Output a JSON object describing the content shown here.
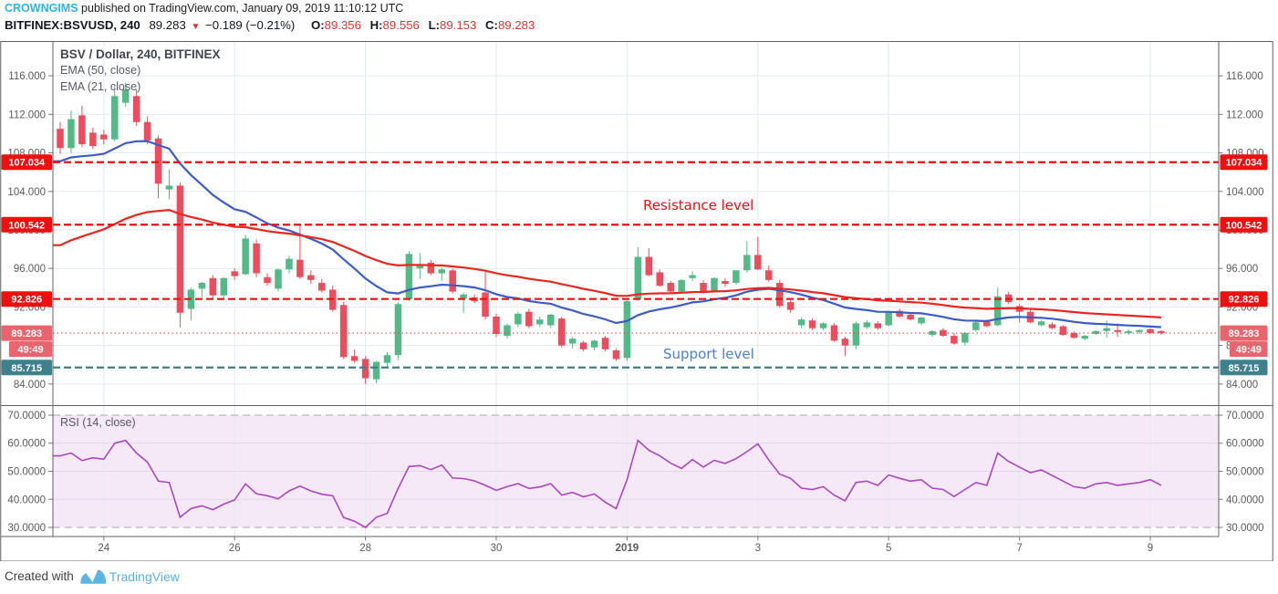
{
  "header": {
    "author": "CROWNGIMS",
    "published": " published on TradingView.com, January 09, 2019 11:10:12 UTC",
    "symbol": "BITFINEX:BSVUSD, 240",
    "last_price": "89.283",
    "direction_icon": "down-triangle",
    "change": "−0.189 (−0.21%)",
    "ohlc": [
      {
        "label": "O:",
        "value": "89.356"
      },
      {
        "label": "H:",
        "value": "89.556"
      },
      {
        "label": "L:",
        "value": "89.153"
      },
      {
        "label": "C:",
        "value": "89.283"
      }
    ]
  },
  "legend": {
    "title": "BSV / Dollar, 240, BITFINEX",
    "indicators": [
      "EMA (50, close)",
      "EMA (21, close)"
    ],
    "rsi": "RSI (14, close)"
  },
  "annotations": {
    "resistance": "Resistance level",
    "support": "Support level"
  },
  "footer": {
    "created_with": "Created with",
    "brand": "TradingView",
    "logo_icon": "tradingview-cloud-logo",
    "brand_color": "#55b1e3"
  },
  "chart_data": {
    "type": "candlestick",
    "title": "BSV / Dollar, 240, BITFINEX",
    "interval_minutes": 240,
    "price_axis": {
      "range": [
        81.76,
        119.61
      ],
      "ticks": [
        84,
        88,
        92,
        96,
        100,
        104,
        108,
        112,
        116
      ],
      "decimals": 3
    },
    "rsi_axis": {
      "range": [
        26.75,
        73.25
      ],
      "ticks": [
        30,
        40,
        50,
        60,
        70
      ],
      "decimals": 4,
      "band": [
        30,
        70
      ]
    },
    "x_ticks": [
      {
        "label": "24",
        "index": 4
      },
      {
        "label": "26",
        "index": 16
      },
      {
        "label": "28",
        "index": 28
      },
      {
        "label": "30",
        "index": 40
      },
      {
        "label": "2019",
        "index": 52,
        "bold": true
      },
      {
        "label": "3",
        "index": 64
      },
      {
        "label": "5",
        "index": 76
      },
      {
        "label": "7",
        "index": 88
      },
      {
        "label": "9",
        "index": 100
      }
    ],
    "levels": [
      {
        "price": 107.034,
        "label": "107.034",
        "color": "#f00f0f",
        "role": "resistance"
      },
      {
        "price": 100.542,
        "label": "100.542",
        "color": "#f00f0f",
        "role": "resistance"
      },
      {
        "price": 92.826,
        "label": "92.826",
        "color": "#f00f0f",
        "role": "resistance"
      },
      {
        "price": 85.715,
        "label": "85.715",
        "color": "#3f808d",
        "role": "support"
      }
    ],
    "last": {
      "price": 89.283,
      "label": "89.283",
      "countdown": "49:49",
      "pill_color": "#e9646c",
      "line_color": "#e04a4a"
    },
    "ema": [
      {
        "label": "EMA (50, close)",
        "period": 50,
        "seed": 98.0,
        "color": "#e8261f"
      },
      {
        "label": "EMA (21, close)",
        "period": 21,
        "seed": 107.0,
        "color": "#3c5cc5"
      }
    ],
    "colors": {
      "up": "#53b987",
      "down": "#eb4d5c",
      "grid": "#e2eaf2",
      "rsi_grid": "#e0d5eb",
      "axis_text": "#5a5a5a",
      "frame": "#606060",
      "rsi_line": "#ab47bc",
      "rsi_band": "#f5e9f8",
      "rsi_dash": "#b9b9b9"
    },
    "candles": [
      [
        110.5,
        111.2,
        107.9,
        108.5
      ],
      [
        108.5,
        112.4,
        108.0,
        111.5
      ],
      [
        111.9,
        112.9,
        108.6,
        108.9
      ],
      [
        110.1,
        110.6,
        108.4,
        108.7
      ],
      [
        109.9,
        110.4,
        108.9,
        109.4
      ],
      [
        109.4,
        115.0,
        109.2,
        113.9
      ],
      [
        113.2,
        115.3,
        112.8,
        114.6
      ],
      [
        113.9,
        114.6,
        110.8,
        111.2
      ],
      [
        111.2,
        111.8,
        108.9,
        109.3
      ],
      [
        109.5,
        109.8,
        103.3,
        104.8
      ],
      [
        104.2,
        106.3,
        103.2,
        104.6
      ],
      [
        104.6,
        104.9,
        89.9,
        91.4
      ],
      [
        91.8,
        94.0,
        90.6,
        93.8
      ],
      [
        93.9,
        94.6,
        93.0,
        94.5
      ],
      [
        95.0,
        95.3,
        92.9,
        93.2
      ],
      [
        93.2,
        95.1,
        92.8,
        95.0
      ],
      [
        95.7,
        96.0,
        94.8,
        95.2
      ],
      [
        95.4,
        99.5,
        95.3,
        99.1
      ],
      [
        98.6,
        99.0,
        95.1,
        95.5
      ],
      [
        95.1,
        95.5,
        94.2,
        94.5
      ],
      [
        93.9,
        96.0,
        93.6,
        95.9
      ],
      [
        95.9,
        97.3,
        95.5,
        97.0
      ],
      [
        96.9,
        100.5,
        94.9,
        95.1
      ],
      [
        95.3,
        95.8,
        94.4,
        94.8
      ],
      [
        94.5,
        94.9,
        93.5,
        93.7
      ],
      [
        93.8,
        94.2,
        91.5,
        91.7
      ],
      [
        92.2,
        92.5,
        86.6,
        86.8
      ],
      [
        86.9,
        87.6,
        86.2,
        86.4
      ],
      [
        86.6,
        86.9,
        84.0,
        84.6
      ],
      [
        84.5,
        86.4,
        84.1,
        86.3
      ],
      [
        86.2,
        87.3,
        85.6,
        87.0
      ],
      [
        87.0,
        92.5,
        86.5,
        92.3
      ],
      [
        92.8,
        97.8,
        92.6,
        97.5
      ],
      [
        96.0,
        97.6,
        94.9,
        96.4
      ],
      [
        96.6,
        96.9,
        95.3,
        95.5
      ],
      [
        95.5,
        96.1,
        94.7,
        95.9
      ],
      [
        95.8,
        96.0,
        93.4,
        93.6
      ],
      [
        92.9,
        93.5,
        91.4,
        93.3
      ],
      [
        93.0,
        93.3,
        92.4,
        92.6
      ],
      [
        93.5,
        95.8,
        90.7,
        91.0
      ],
      [
        91.0,
        91.3,
        88.9,
        89.2
      ],
      [
        89.0,
        90.3,
        88.7,
        90.1
      ],
      [
        90.2,
        91.5,
        89.9,
        91.3
      ],
      [
        91.5,
        91.8,
        89.8,
        90.0
      ],
      [
        90.2,
        91.0,
        89.9,
        90.7
      ],
      [
        90.1,
        91.3,
        89.8,
        91.2
      ],
      [
        90.8,
        91.0,
        87.8,
        88.0
      ],
      [
        88.2,
        88.9,
        87.7,
        88.7
      ],
      [
        88.3,
        88.5,
        87.4,
        87.6
      ],
      [
        87.8,
        88.6,
        87.5,
        88.5
      ],
      [
        88.8,
        89.0,
        87.4,
        87.6
      ],
      [
        87.5,
        87.7,
        86.4,
        86.6
      ],
      [
        86.7,
        92.7,
        86.4,
        92.6
      ],
      [
        92.8,
        98.2,
        92.6,
        97.2
      ],
      [
        97.2,
        98.1,
        95.2,
        95.3
      ],
      [
        95.6,
        95.9,
        94.1,
        94.2
      ],
      [
        94.5,
        94.7,
        93.4,
        93.6
      ],
      [
        93.6,
        94.9,
        93.4,
        94.8
      ],
      [
        95.0,
        95.7,
        94.7,
        95.3
      ],
      [
        94.5,
        94.8,
        93.4,
        93.6
      ],
      [
        93.7,
        95.1,
        93.5,
        95.0
      ],
      [
        94.7,
        95.0,
        94.1,
        94.4
      ],
      [
        94.5,
        95.8,
        94.3,
        95.8
      ],
      [
        95.8,
        98.8,
        95.6,
        97.4
      ],
      [
        97.4,
        99.3,
        95.8,
        95.9
      ],
      [
        95.8,
        96.3,
        94.6,
        94.8
      ],
      [
        94.5,
        94.8,
        91.9,
        92.1
      ],
      [
        92.5,
        92.7,
        91.4,
        91.7
      ],
      [
        90.1,
        90.9,
        89.8,
        90.7
      ],
      [
        90.6,
        90.8,
        89.6,
        89.8
      ],
      [
        89.8,
        90.4,
        89.6,
        90.3
      ],
      [
        90.1,
        90.3,
        88.4,
        88.5
      ],
      [
        88.7,
        88.9,
        86.9,
        88.0
      ],
      [
        88.0,
        90.5,
        87.6,
        90.3
      ],
      [
        89.9,
        90.6,
        89.7,
        90.4
      ],
      [
        90.3,
        90.5,
        89.6,
        89.8
      ],
      [
        90.1,
        91.5,
        90.0,
        91.4
      ],
      [
        91.6,
        91.8,
        90.9,
        91.0
      ],
      [
        91.2,
        91.4,
        90.6,
        90.7
      ],
      [
        90.3,
        91.0,
        90.1,
        90.9
      ],
      [
        89.1,
        89.6,
        88.9,
        89.5
      ],
      [
        89.6,
        89.8,
        88.9,
        89.0
      ],
      [
        89.0,
        89.3,
        88.1,
        88.2
      ],
      [
        88.3,
        89.4,
        88.0,
        89.3
      ],
      [
        89.6,
        90.6,
        89.4,
        90.4
      ],
      [
        90.5,
        90.7,
        89.9,
        90.0
      ],
      [
        90.1,
        94.0,
        90.0,
        93.1
      ],
      [
        93.3,
        93.6,
        92.3,
        92.5
      ],
      [
        92.1,
        92.3,
        90.4,
        91.5
      ],
      [
        91.5,
        91.7,
        90.3,
        90.4
      ],
      [
        90.1,
        90.6,
        90.0,
        90.5
      ],
      [
        90.2,
        90.4,
        89.7,
        89.8
      ],
      [
        90.0,
        90.1,
        89.0,
        89.1
      ],
      [
        89.3,
        89.5,
        88.7,
        88.8
      ],
      [
        88.7,
        89.1,
        88.5,
        89.0
      ],
      [
        89.2,
        89.6,
        89.1,
        89.5
      ],
      [
        89.5,
        90.6,
        88.8,
        89.8
      ],
      [
        89.6,
        90.3,
        88.9,
        89.4
      ],
      [
        89.3,
        89.7,
        89.1,
        89.5
      ],
      [
        89.4,
        89.7,
        89.2,
        89.6
      ],
      [
        89.7,
        89.8,
        89.2,
        89.3
      ],
      [
        89.5,
        89.6,
        89.1,
        89.28
      ]
    ],
    "rsi": [
      55.5,
      56.5,
      53.8,
      54.8,
      54.3,
      60.0,
      61.0,
      56.5,
      53.3,
      46.5,
      46.0,
      33.6,
      36.7,
      37.7,
      36.3,
      38.3,
      39.8,
      45.5,
      42.0,
      41.3,
      40.2,
      43.0,
      44.7,
      43.0,
      41.8,
      41.3,
      33.5,
      32.2,
      30.0,
      33.6,
      35.0,
      43.9,
      51.7,
      52.0,
      50.6,
      52.2,
      47.6,
      47.4,
      46.6,
      45.0,
      43.2,
      44.5,
      45.6,
      43.9,
      44.4,
      45.6,
      41.5,
      42.5,
      40.9,
      41.9,
      39.0,
      36.7,
      47.0,
      61.0,
      57.5,
      55.5,
      52.9,
      51.0,
      54.2,
      51.5,
      53.9,
      52.8,
      54.5,
      57.0,
      59.8,
      54.0,
      49.0,
      47.5,
      44.0,
      43.5,
      44.5,
      41.5,
      39.5,
      46.0,
      46.5,
      45.0,
      48.7,
      47.5,
      46.5,
      47.0,
      44.0,
      43.5,
      41.0,
      43.5,
      46.0,
      45.0,
      56.5,
      53.5,
      51.5,
      49.5,
      50.5,
      48.5,
      46.5,
      44.5,
      44.0,
      45.5,
      46.0,
      45.0,
      45.5,
      46.0,
      47.0,
      45.0
    ]
  }
}
